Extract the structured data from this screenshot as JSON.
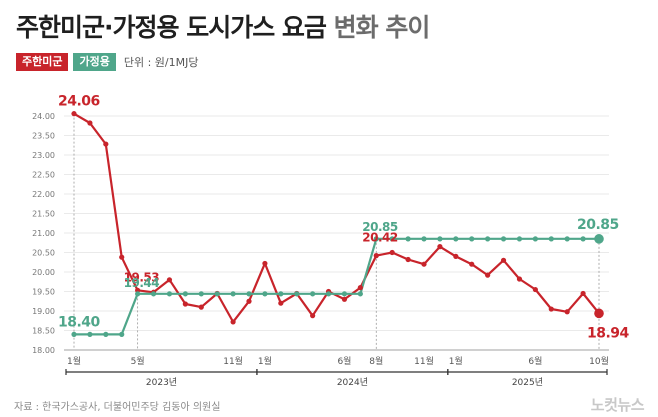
{
  "title_part1": "주한미군·가정용 도시가스 요금",
  "title_part2": "변화 추이",
  "unit": "단위 : 원/1MJ당",
  "source": "자료 : 한국가스공사, 더불어민주당 김동아 의원실",
  "logo": "노컷뉴스",
  "colors": {
    "usfk": "#c8242b",
    "household": "#4fa68a",
    "axis": "#777777",
    "grid": "#d6d6d6"
  },
  "chart_data": {
    "type": "line",
    "ylim": [
      18.0,
      24.0
    ],
    "yticks": [
      "24.00",
      "23.50",
      "23.00",
      "22.50",
      "22.00",
      "21.50",
      "21.00",
      "20.50",
      "20.00",
      "19.50",
      "19.00",
      "18.50",
      "18.00"
    ],
    "x": [
      "2023-01",
      "2023-02",
      "2023-03",
      "2023-04",
      "2023-05",
      "2023-06",
      "2023-07",
      "2023-08",
      "2023-09",
      "2023-10",
      "2023-11",
      "2023-12",
      "2024-01",
      "2024-02",
      "2024-03",
      "2024-04",
      "2024-05",
      "2024-06",
      "2024-07",
      "2024-08",
      "2024-09",
      "2024-10",
      "2024-11",
      "2024-12",
      "2025-01",
      "2025-02",
      "2025-03",
      "2025-04",
      "2025-05",
      "2025-06",
      "2025-07",
      "2025-08",
      "2025-09",
      "2025-10"
    ],
    "x_tick_labels": [
      {
        "index": 0,
        "label": "1월"
      },
      {
        "index": 4,
        "label": "5월"
      },
      {
        "index": 10,
        "label": "11월"
      },
      {
        "index": 12,
        "label": "1월"
      },
      {
        "index": 17,
        "label": "6월"
      },
      {
        "index": 19,
        "label": "8월"
      },
      {
        "index": 22,
        "label": "11월"
      },
      {
        "index": 24,
        "label": "1월"
      },
      {
        "index": 29,
        "label": "6월"
      },
      {
        "index": 33,
        "label": "10월"
      }
    ],
    "years": [
      {
        "label": "2023년",
        "start": 0,
        "end": 11
      },
      {
        "label": "2024년",
        "start": 12,
        "end": 23
      },
      {
        "label": "2025년",
        "start": 24,
        "end": 33
      }
    ],
    "series": [
      {
        "name": "주한미군",
        "color": "#c8242b",
        "values": [
          24.06,
          23.82,
          23.28,
          20.38,
          19.53,
          19.48,
          19.8,
          19.18,
          19.1,
          19.45,
          18.72,
          19.25,
          20.22,
          19.2,
          19.45,
          18.88,
          19.5,
          19.3,
          19.6,
          20.42,
          20.5,
          20.32,
          20.2,
          20.65,
          20.4,
          20.2,
          19.92,
          20.3,
          19.82,
          19.55,
          19.05,
          18.98,
          19.45,
          18.94
        ]
      },
      {
        "name": "가정용",
        "color": "#4fa68a",
        "values": [
          18.4,
          18.4,
          18.4,
          18.4,
          19.44,
          19.44,
          19.44,
          19.44,
          19.44,
          19.44,
          19.44,
          19.44,
          19.44,
          19.44,
          19.44,
          19.44,
          19.44,
          19.44,
          19.44,
          20.85,
          20.85,
          20.85,
          20.85,
          20.85,
          20.85,
          20.85,
          20.85,
          20.85,
          20.85,
          20.85,
          20.85,
          20.85,
          20.85,
          20.85
        ]
      }
    ],
    "annotations": [
      {
        "series": 0,
        "index": 0,
        "text": "24.06"
      },
      {
        "series": 0,
        "index": 4,
        "text": "19.53"
      },
      {
        "series": 0,
        "index": 19,
        "text": "20.42"
      },
      {
        "series": 0,
        "index": 33,
        "text": "18.94"
      },
      {
        "series": 1,
        "index": 0,
        "text": "18.40"
      },
      {
        "series": 1,
        "index": 4,
        "text": "19.44"
      },
      {
        "series": 1,
        "index": 19,
        "text": "20.85"
      },
      {
        "series": 1,
        "index": 33,
        "text": "20.85"
      }
    ]
  }
}
